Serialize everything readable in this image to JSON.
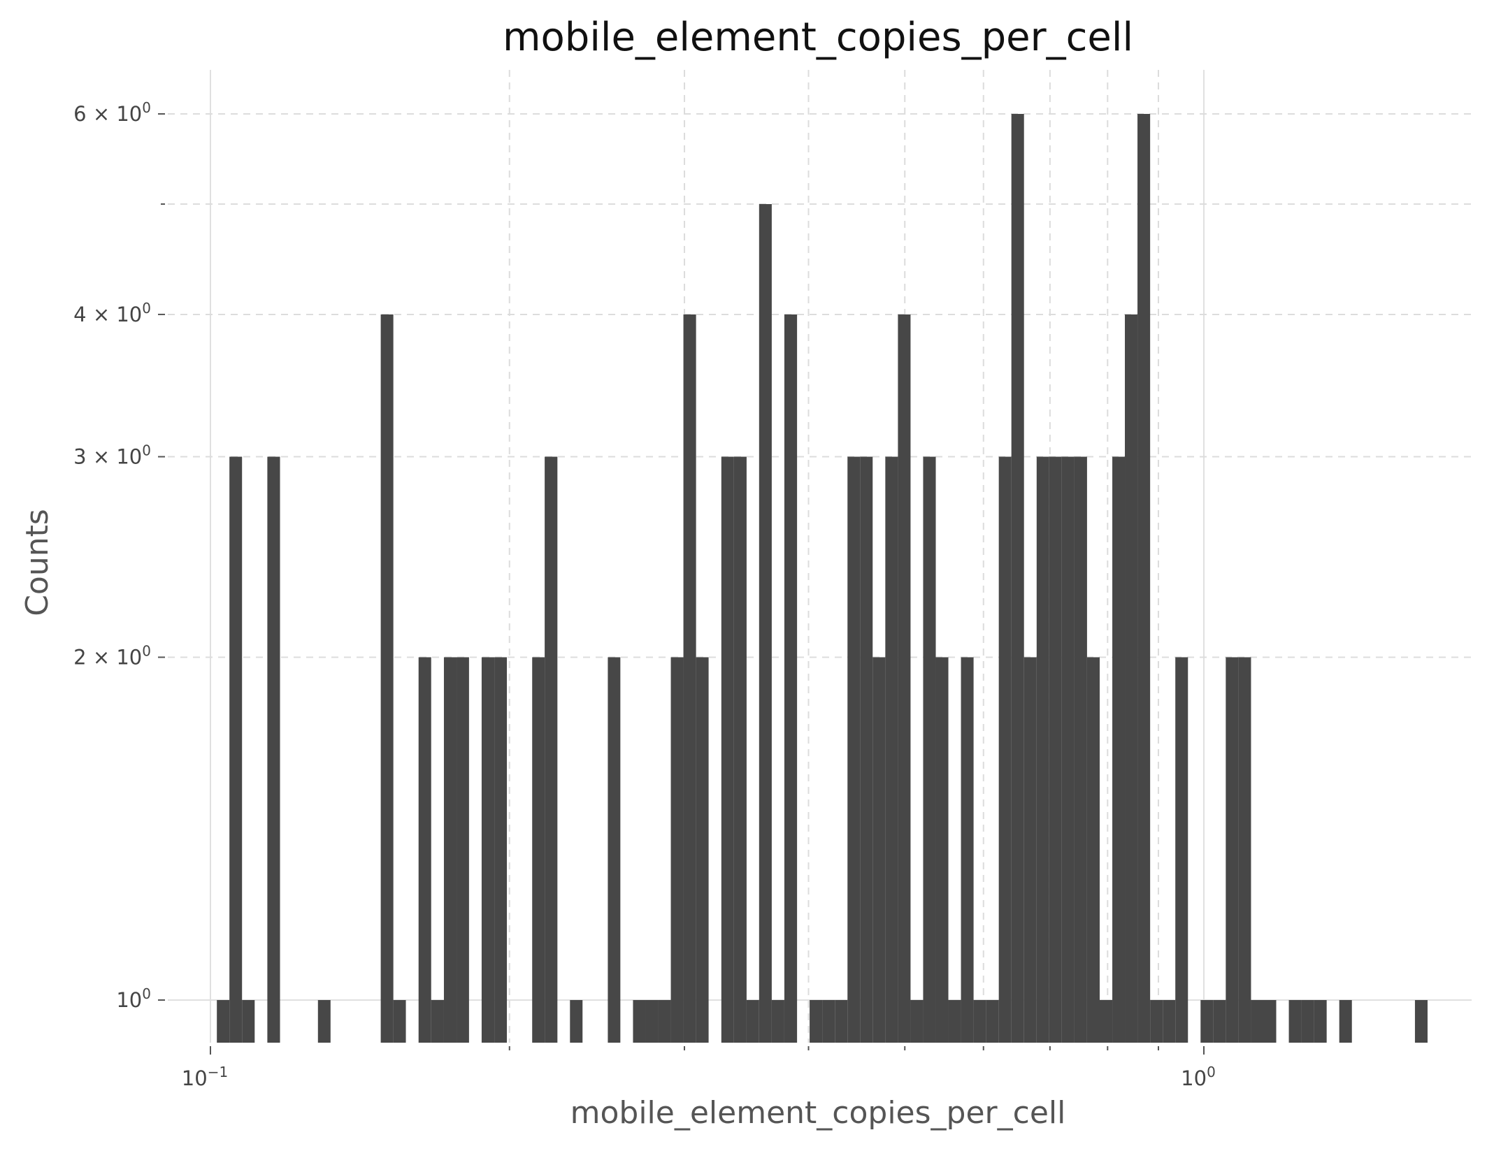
{
  "chart_data": {
    "type": "bar",
    "subtype": "histogram",
    "title": "mobile_element_copies_per_cell",
    "xlabel": "mobile_element_copies_per_cell",
    "ylabel": "Counts",
    "xscale": "log",
    "yscale": "log",
    "xlim": [
      0.087,
      2.1
    ],
    "ylim": [
      0.9,
      6.5
    ],
    "grid": true,
    "bar_color": "#474747",
    "x_ticks": [
      {
        "value": 0.1,
        "label": "10",
        "exp": "−1"
      },
      {
        "value": 1.0,
        "label": "10",
        "exp": "0"
      }
    ],
    "y_ticks": [
      {
        "value": 1,
        "label": "10",
        "exp": "0"
      },
      {
        "value": 2,
        "label": "2 × 10",
        "exp": "0"
      },
      {
        "value": 3,
        "label": "3 × 10",
        "exp": "0"
      },
      {
        "value": 4,
        "label": "4 × 10",
        "exp": "0"
      },
      {
        "value": 6,
        "label": "6 × 10",
        "exp": "0"
      }
    ],
    "bin_edges": [
      0.1015,
      0.1045,
      0.1076,
      0.1108,
      0.1141,
      0.1175,
      0.121,
      0.1246,
      0.1283,
      0.1321,
      0.136,
      0.14,
      0.1441,
      0.1484,
      0.1528,
      0.1573,
      0.162,
      0.1668,
      0.1718,
      0.1769,
      0.1821,
      0.1875,
      0.1931,
      0.1988,
      0.2047,
      0.2108,
      0.217,
      0.2235,
      0.2301,
      0.2369,
      0.2439,
      0.2512,
      0.2586,
      0.2663,
      0.2742,
      0.2823,
      0.2907,
      0.2993,
      0.3082,
      0.3173,
      0.3268,
      0.3365,
      0.3465,
      0.3567,
      0.3673,
      0.3782,
      0.3895,
      0.401,
      0.4129,
      0.4252,
      0.4378,
      0.4508,
      0.4641,
      0.4779,
      0.4921,
      0.5067,
      0.5217,
      0.5372,
      0.5531,
      0.5695,
      0.5864,
      0.6038,
      0.6217,
      0.6401,
      0.6591,
      0.6787,
      0.6988,
      0.7195,
      0.7409,
      0.7628,
      0.7855,
      0.8088,
      0.8327,
      0.8574,
      0.8829,
      0.9091,
      0.936,
      0.9638,
      0.9924,
      1.0218,
      1.0521,
      1.0833,
      1.1155,
      1.1486,
      1.1826,
      1.2177,
      1.2538,
      1.291,
      1.3293,
      1.3687,
      1.4093,
      1.4511,
      1.4942,
      1.5385,
      1.5841,
      1.6311,
      1.6795
    ],
    "counts": [
      1,
      3,
      1,
      0,
      3,
      0,
      0,
      0,
      1,
      0,
      0,
      0,
      0,
      4,
      1,
      0,
      2,
      1,
      2,
      2,
      0,
      2,
      2,
      0,
      0,
      2,
      3,
      0,
      1,
      0,
      0,
      2,
      0,
      1,
      1,
      1,
      2,
      4,
      2,
      0,
      3,
      3,
      1,
      5,
      1,
      4,
      0,
      1,
      1,
      1,
      3,
      3,
      2,
      3,
      4,
      1,
      3,
      2,
      1,
      2,
      1,
      1,
      3,
      6,
      2,
      3,
      3,
      3,
      3,
      2,
      1,
      3,
      4,
      6,
      1,
      1,
      2,
      0,
      1,
      1,
      2,
      2,
      1,
      1,
      0,
      1,
      1,
      1,
      0,
      1,
      0,
      0,
      0,
      0,
      0,
      1
    ]
  }
}
